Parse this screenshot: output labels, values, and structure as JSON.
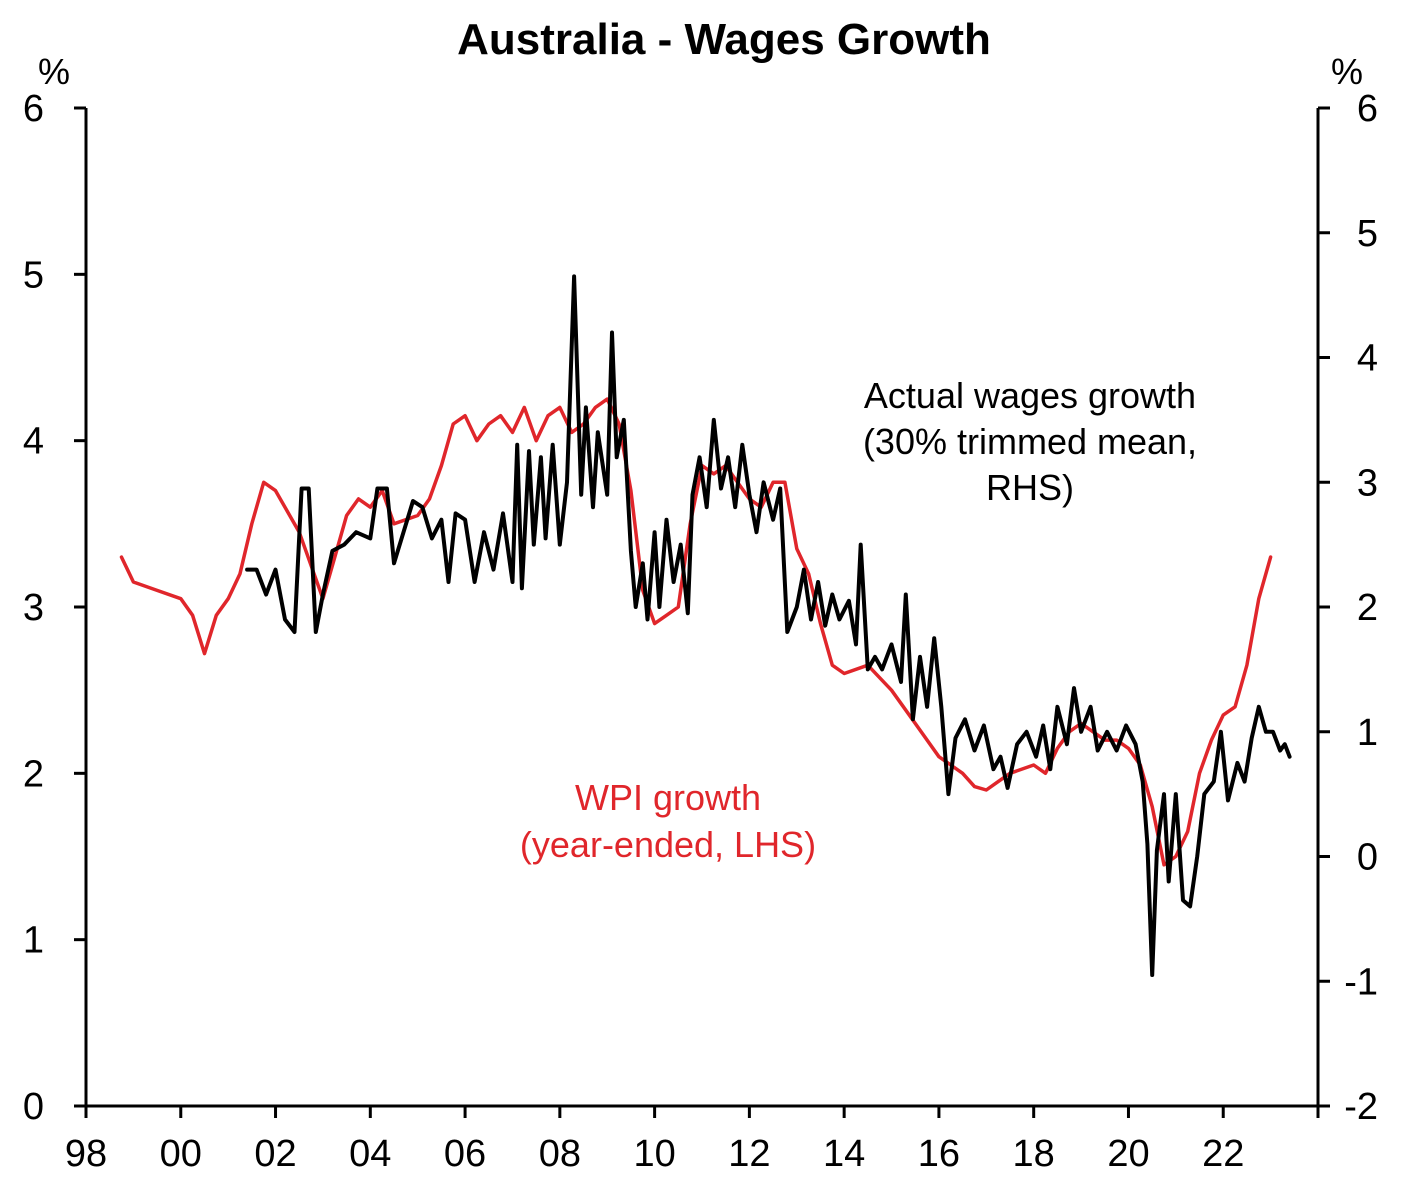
{
  "chart_data": {
    "type": "line",
    "title": "Australia - Wages Growth",
    "left_axis": {
      "unit": "%",
      "ylim": [
        0,
        6
      ],
      "ticks": [
        "0",
        "1",
        "2",
        "3",
        "4",
        "5",
        "6"
      ]
    },
    "right_axis": {
      "unit": "%",
      "ylim": [
        -2,
        6
      ],
      "ticks": [
        "-2",
        "-1",
        "0",
        "1",
        "2",
        "3",
        "4",
        "5",
        "6"
      ]
    },
    "x_axis": {
      "xlim": [
        1998,
        2024
      ],
      "ticks": [
        "98",
        "00",
        "02",
        "04",
        "06",
        "08",
        "10",
        "12",
        "14",
        "16",
        "18",
        "20",
        "22"
      ]
    },
    "grid": false,
    "colors": {
      "wpi": "#e0262b",
      "actual": "#000000"
    },
    "annotations": {
      "actual": [
        "Actual wages growth",
        "(30% trimmed mean,",
        "RHS)"
      ],
      "wpi": [
        "WPI growth",
        "(year-ended, LHS)"
      ]
    },
    "series": [
      {
        "key": "wpi",
        "axis": "left",
        "points": [
          [
            1998.75,
            3.3
          ],
          [
            1999.0,
            3.15
          ],
          [
            1999.5,
            3.1
          ],
          [
            2000.0,
            3.05
          ],
          [
            2000.25,
            2.95
          ],
          [
            2000.5,
            2.72
          ],
          [
            2000.75,
            2.95
          ],
          [
            2001.0,
            3.05
          ],
          [
            2001.25,
            3.2
          ],
          [
            2001.5,
            3.5
          ],
          [
            2001.75,
            3.75
          ],
          [
            2002.0,
            3.7
          ],
          [
            2002.5,
            3.45
          ],
          [
            2003.0,
            3.05
          ],
          [
            2003.25,
            3.3
          ],
          [
            2003.5,
            3.55
          ],
          [
            2003.75,
            3.65
          ],
          [
            2004.0,
            3.6
          ],
          [
            2004.25,
            3.7
          ],
          [
            2004.5,
            3.5
          ],
          [
            2005.0,
            3.55
          ],
          [
            2005.25,
            3.65
          ],
          [
            2005.5,
            3.85
          ],
          [
            2005.75,
            4.1
          ],
          [
            2006.0,
            4.15
          ],
          [
            2006.25,
            4.0
          ],
          [
            2006.5,
            4.1
          ],
          [
            2006.75,
            4.15
          ],
          [
            2007.0,
            4.05
          ],
          [
            2007.25,
            4.2
          ],
          [
            2007.5,
            4.0
          ],
          [
            2007.75,
            4.15
          ],
          [
            2008.0,
            4.2
          ],
          [
            2008.25,
            4.05
          ],
          [
            2008.5,
            4.1
          ],
          [
            2008.75,
            4.2
          ],
          [
            2009.0,
            4.25
          ],
          [
            2009.25,
            4.1
          ],
          [
            2009.5,
            3.7
          ],
          [
            2009.75,
            3.1
          ],
          [
            2010.0,
            2.9
          ],
          [
            2010.25,
            2.95
          ],
          [
            2010.5,
            3.0
          ],
          [
            2010.75,
            3.5
          ],
          [
            2011.0,
            3.85
          ],
          [
            2011.25,
            3.8
          ],
          [
            2011.5,
            3.85
          ],
          [
            2011.75,
            3.75
          ],
          [
            2012.0,
            3.65
          ],
          [
            2012.25,
            3.6
          ],
          [
            2012.5,
            3.75
          ],
          [
            2012.75,
            3.75
          ],
          [
            2013.0,
            3.35
          ],
          [
            2013.25,
            3.2
          ],
          [
            2013.5,
            2.9
          ],
          [
            2013.75,
            2.65
          ],
          [
            2014.0,
            2.6
          ],
          [
            2014.5,
            2.65
          ],
          [
            2015.0,
            2.5
          ],
          [
            2015.25,
            2.4
          ],
          [
            2015.5,
            2.3
          ],
          [
            2016.0,
            2.1
          ],
          [
            2016.25,
            2.05
          ],
          [
            2016.5,
            2.0
          ],
          [
            2016.75,
            1.92
          ],
          [
            2017.0,
            1.9
          ],
          [
            2017.25,
            1.95
          ],
          [
            2017.5,
            2.0
          ],
          [
            2018.0,
            2.05
          ],
          [
            2018.25,
            2.0
          ],
          [
            2018.5,
            2.15
          ],
          [
            2018.75,
            2.25
          ],
          [
            2019.0,
            2.3
          ],
          [
            2019.5,
            2.2
          ],
          [
            2019.75,
            2.2
          ],
          [
            2020.0,
            2.15
          ],
          [
            2020.25,
            2.05
          ],
          [
            2020.5,
            1.8
          ],
          [
            2020.75,
            1.45
          ],
          [
            2021.0,
            1.5
          ],
          [
            2021.25,
            1.65
          ],
          [
            2021.5,
            2.0
          ],
          [
            2021.75,
            2.2
          ],
          [
            2022.0,
            2.35
          ],
          [
            2022.25,
            2.4
          ],
          [
            2022.5,
            2.65
          ],
          [
            2022.75,
            3.05
          ],
          [
            2023.0,
            3.3
          ]
        ]
      },
      {
        "key": "actual",
        "axis": "right",
        "points": [
          [
            2001.4,
            2.3
          ],
          [
            2001.6,
            2.3
          ],
          [
            2001.8,
            2.1
          ],
          [
            2002.0,
            2.3
          ],
          [
            2002.2,
            1.9
          ],
          [
            2002.4,
            1.8
          ],
          [
            2002.55,
            2.95
          ],
          [
            2002.7,
            2.95
          ],
          [
            2002.85,
            1.8
          ],
          [
            2003.0,
            2.1
          ],
          [
            2003.2,
            2.45
          ],
          [
            2003.45,
            2.5
          ],
          [
            2003.7,
            2.6
          ],
          [
            2004.0,
            2.55
          ],
          [
            2004.15,
            2.95
          ],
          [
            2004.35,
            2.95
          ],
          [
            2004.5,
            2.35
          ],
          [
            2004.7,
            2.6
          ],
          [
            2004.9,
            2.85
          ],
          [
            2005.1,
            2.8
          ],
          [
            2005.3,
            2.55
          ],
          [
            2005.5,
            2.7
          ],
          [
            2005.65,
            2.2
          ],
          [
            2005.8,
            2.75
          ],
          [
            2006.0,
            2.7
          ],
          [
            2006.2,
            2.2
          ],
          [
            2006.4,
            2.6
          ],
          [
            2006.6,
            2.3
          ],
          [
            2006.8,
            2.75
          ],
          [
            2007.0,
            2.2
          ],
          [
            2007.1,
            3.3
          ],
          [
            2007.2,
            2.15
          ],
          [
            2007.35,
            3.25
          ],
          [
            2007.45,
            2.5
          ],
          [
            2007.6,
            3.2
          ],
          [
            2007.7,
            2.55
          ],
          [
            2007.85,
            3.3
          ],
          [
            2008.0,
            2.5
          ],
          [
            2008.15,
            3.0
          ],
          [
            2008.3,
            4.65
          ],
          [
            2008.45,
            2.9
          ],
          [
            2008.55,
            3.6
          ],
          [
            2008.7,
            2.8
          ],
          [
            2008.8,
            3.4
          ],
          [
            2009.0,
            2.9
          ],
          [
            2009.1,
            4.2
          ],
          [
            2009.2,
            3.2
          ],
          [
            2009.35,
            3.5
          ],
          [
            2009.5,
            2.45
          ],
          [
            2009.6,
            2.0
          ],
          [
            2009.75,
            2.35
          ],
          [
            2009.85,
            1.9
          ],
          [
            2010.0,
            2.6
          ],
          [
            2010.1,
            2.0
          ],
          [
            2010.25,
            2.7
          ],
          [
            2010.4,
            2.2
          ],
          [
            2010.55,
            2.5
          ],
          [
            2010.7,
            1.95
          ],
          [
            2010.8,
            2.9
          ],
          [
            2010.95,
            3.2
          ],
          [
            2011.1,
            2.8
          ],
          [
            2011.25,
            3.5
          ],
          [
            2011.4,
            2.95
          ],
          [
            2011.55,
            3.2
          ],
          [
            2011.7,
            2.8
          ],
          [
            2011.85,
            3.3
          ],
          [
            2012.0,
            2.9
          ],
          [
            2012.15,
            2.6
          ],
          [
            2012.3,
            3.0
          ],
          [
            2012.5,
            2.7
          ],
          [
            2012.65,
            2.95
          ],
          [
            2012.8,
            1.8
          ],
          [
            2013.0,
            2.0
          ],
          [
            2013.15,
            2.3
          ],
          [
            2013.3,
            1.9
          ],
          [
            2013.45,
            2.2
          ],
          [
            2013.6,
            1.85
          ],
          [
            2013.75,
            2.1
          ],
          [
            2013.9,
            1.9
          ],
          [
            2014.1,
            2.05
          ],
          [
            2014.25,
            1.7
          ],
          [
            2014.35,
            2.5
          ],
          [
            2014.5,
            1.5
          ],
          [
            2014.65,
            1.6
          ],
          [
            2014.8,
            1.5
          ],
          [
            2015.0,
            1.7
          ],
          [
            2015.2,
            1.4
          ],
          [
            2015.3,
            2.1
          ],
          [
            2015.45,
            1.1
          ],
          [
            2015.6,
            1.6
          ],
          [
            2015.75,
            1.2
          ],
          [
            2015.9,
            1.75
          ],
          [
            2016.05,
            1.2
          ],
          [
            2016.2,
            0.5
          ],
          [
            2016.35,
            0.95
          ],
          [
            2016.55,
            1.1
          ],
          [
            2016.75,
            0.85
          ],
          [
            2016.95,
            1.05
          ],
          [
            2017.15,
            0.7
          ],
          [
            2017.3,
            0.8
          ],
          [
            2017.45,
            0.55
          ],
          [
            2017.65,
            0.9
          ],
          [
            2017.85,
            1.0
          ],
          [
            2018.05,
            0.8
          ],
          [
            2018.2,
            1.05
          ],
          [
            2018.35,
            0.7
          ],
          [
            2018.5,
            1.2
          ],
          [
            2018.7,
            0.9
          ],
          [
            2018.85,
            1.35
          ],
          [
            2019.0,
            1.0
          ],
          [
            2019.2,
            1.2
          ],
          [
            2019.35,
            0.85
          ],
          [
            2019.55,
            1.0
          ],
          [
            2019.75,
            0.85
          ],
          [
            2019.95,
            1.05
          ],
          [
            2020.15,
            0.9
          ],
          [
            2020.3,
            0.6
          ],
          [
            2020.4,
            0.1
          ],
          [
            2020.5,
            -0.95
          ],
          [
            2020.6,
            0.05
          ],
          [
            2020.75,
            0.5
          ],
          [
            2020.85,
            -0.2
          ],
          [
            2021.0,
            0.5
          ],
          [
            2021.15,
            -0.35
          ],
          [
            2021.3,
            -0.4
          ],
          [
            2021.45,
            0.0
          ],
          [
            2021.6,
            0.5
          ],
          [
            2021.8,
            0.6
          ],
          [
            2021.95,
            1.0
          ],
          [
            2022.1,
            0.45
          ],
          [
            2022.3,
            0.75
          ],
          [
            2022.45,
            0.6
          ],
          [
            2022.6,
            0.95
          ],
          [
            2022.75,
            1.2
          ],
          [
            2022.9,
            1.0
          ],
          [
            2023.05,
            1.0
          ],
          [
            2023.2,
            0.85
          ],
          [
            2023.3,
            0.9
          ],
          [
            2023.4,
            0.8
          ]
        ]
      }
    ]
  }
}
